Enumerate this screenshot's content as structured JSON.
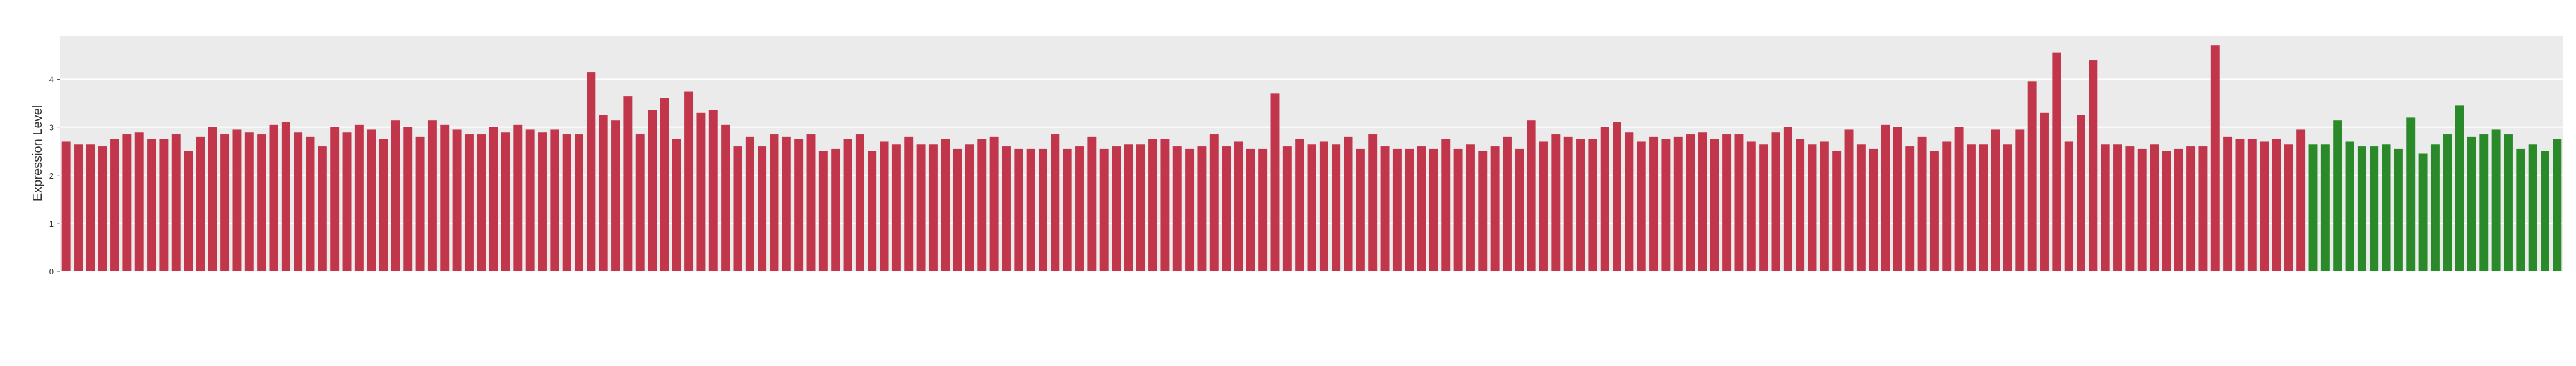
{
  "chart_data": {
    "type": "bar",
    "y_label": "Expression Level",
    "categories": [
      null,
      null,
      null,
      null,
      null,
      null,
      null,
      null,
      null,
      null,
      null,
      null,
      null,
      null,
      null,
      null,
      null,
      null,
      null,
      null,
      null,
      null,
      null,
      null,
      null,
      null,
      null,
      null,
      null,
      null,
      null,
      null,
      null,
      null,
      null,
      null,
      null,
      null,
      null,
      null,
      null,
      null,
      null,
      null,
      null,
      null,
      null,
      null,
      null,
      null,
      null,
      null,
      null,
      null,
      null,
      null,
      null,
      null,
      null,
      null,
      null,
      null,
      null,
      null,
      null,
      null,
      null,
      null,
      null,
      null,
      null,
      null,
      null,
      null,
      null,
      null,
      null,
      null,
      null,
      null,
      null,
      null,
      null,
      null,
      null,
      null,
      null,
      null,
      null,
      null,
      null,
      null,
      null,
      null,
      null,
      null,
      null,
      null,
      null,
      null,
      null,
      null,
      null,
      null,
      null,
      null,
      null,
      null,
      null,
      null,
      null,
      null,
      null,
      null,
      null,
      null,
      null,
      null,
      null,
      null,
      null,
      null,
      null,
      null,
      null,
      null,
      null,
      null,
      null,
      null,
      null,
      null,
      null,
      null,
      null,
      null,
      null,
      null,
      null,
      null,
      null,
      null,
      null,
      null,
      null,
      null,
      null,
      null,
      null,
      null,
      null,
      null,
      null,
      null,
      null,
      null,
      null,
      null,
      null,
      null,
      null,
      null,
      null,
      null,
      null,
      null,
      null,
      null,
      null,
      null,
      null,
      null,
      null,
      null,
      null,
      null,
      null,
      null,
      null,
      null,
      null,
      null,
      null,
      null,
      null,
      null,
      null,
      null,
      null,
      null,
      null,
      null,
      null,
      null,
      null,
      null,
      null,
      null,
      null,
      null,
      null,
      null,
      null,
      null,
      null
    ],
    "values": [
      2.7,
      2.65,
      2.65,
      2.6,
      2.75,
      2.85,
      2.9,
      2.75,
      2.75,
      2.85,
      2.5,
      2.8,
      3.0,
      2.85,
      2.95,
      2.9,
      2.85,
      3.05,
      3.1,
      2.9,
      2.8,
      2.6,
      3.0,
      2.9,
      3.05,
      2.95,
      2.75,
      3.15,
      3.0,
      2.8,
      3.15,
      3.05,
      2.95,
      2.85,
      2.85,
      3.0,
      2.9,
      3.05,
      2.95,
      2.9,
      2.95,
      2.85,
      2.85,
      4.15,
      3.25,
      3.15,
      3.65,
      2.85,
      3.35,
      3.6,
      2.75,
      3.75,
      3.3,
      3.35,
      3.05,
      2.6,
      2.8,
      2.6,
      2.85,
      2.8,
      2.75,
      2.85,
      2.5,
      2.55,
      2.75,
      2.85,
      2.5,
      2.7,
      2.65,
      2.8,
      2.65,
      2.65,
      2.75,
      2.55,
      2.65,
      2.75,
      2.8,
      2.6,
      2.55,
      2.55,
      2.55,
      2.85,
      2.55,
      2.6,
      2.8,
      2.55,
      2.6,
      2.65,
      2.65,
      2.75,
      2.75,
      2.6,
      2.55,
      2.6,
      2.85,
      2.6,
      2.7,
      2.55,
      2.55,
      3.7,
      2.6,
      2.75,
      2.65,
      2.7,
      2.65,
      2.8,
      2.55,
      2.85,
      2.6,
      2.55,
      2.55,
      2.6,
      2.55,
      2.75,
      2.55,
      2.65,
      2.5,
      2.6,
      2.8,
      2.55,
      3.15,
      2.7,
      2.85,
      2.8,
      2.75,
      2.75,
      3.0,
      3.1,
      2.9,
      2.7,
      2.8,
      2.75,
      2.8,
      2.85,
      2.9,
      2.75,
      2.85,
      2.85,
      2.7,
      2.65,
      2.9,
      3.0,
      2.75,
      2.65,
      2.7,
      2.5,
      2.95,
      2.65,
      2.55,
      3.05,
      3.0,
      2.6,
      2.8,
      2.5,
      2.7,
      3.0,
      2.65,
      2.65,
      2.95,
      2.65,
      2.95,
      3.95,
      3.3,
      4.55,
      2.7,
      3.25,
      4.4,
      2.65,
      2.65,
      2.6,
      2.55,
      2.65,
      2.5,
      2.55,
      2.6,
      2.6,
      4.7,
      2.8,
      2.75,
      2.75,
      2.7,
      2.75,
      2.65,
      2.95,
      2.65,
      2.65,
      3.15,
      2.7,
      2.6,
      2.6,
      2.65,
      2.55,
      3.2,
      2.45,
      2.65,
      2.85,
      3.45,
      2.8,
      2.85,
      2.95,
      2.85,
      2.55,
      2.65,
      2.5,
      2.75
    ],
    "colors": [
      "#c1364b",
      "#c1364b",
      "#c1364b",
      "#c1364b",
      "#c1364b",
      "#c1364b",
      "#c1364b",
      "#c1364b",
      "#c1364b",
      "#c1364b",
      "#c1364b",
      "#c1364b",
      "#c1364b",
      "#c1364b",
      "#c1364b",
      "#c1364b",
      "#c1364b",
      "#c1364b",
      "#c1364b",
      "#c1364b",
      "#c1364b",
      "#c1364b",
      "#c1364b",
      "#c1364b",
      "#c1364b",
      "#c1364b",
      "#c1364b",
      "#c1364b",
      "#c1364b",
      "#c1364b",
      "#c1364b",
      "#c1364b",
      "#c1364b",
      "#c1364b",
      "#c1364b",
      "#c1364b",
      "#c1364b",
      "#c1364b",
      "#c1364b",
      "#c1364b",
      "#c1364b",
      "#c1364b",
      "#c1364b",
      "#c1364b",
      "#c1364b",
      "#c1364b",
      "#c1364b",
      "#c1364b",
      "#c1364b",
      "#c1364b",
      "#c1364b",
      "#c1364b",
      "#c1364b",
      "#c1364b",
      "#c1364b",
      "#c1364b",
      "#c1364b",
      "#c1364b",
      "#c1364b",
      "#c1364b",
      "#c1364b",
      "#c1364b",
      "#c1364b",
      "#c1364b",
      "#c1364b",
      "#c1364b",
      "#c1364b",
      "#c1364b",
      "#c1364b",
      "#c1364b",
      "#c1364b",
      "#c1364b",
      "#c1364b",
      "#c1364b",
      "#c1364b",
      "#c1364b",
      "#c1364b",
      "#c1364b",
      "#c1364b",
      "#c1364b",
      "#c1364b",
      "#c1364b",
      "#c1364b",
      "#c1364b",
      "#c1364b",
      "#c1364b",
      "#c1364b",
      "#c1364b",
      "#c1364b",
      "#c1364b",
      "#c1364b",
      "#c1364b",
      "#c1364b",
      "#c1364b",
      "#c1364b",
      "#c1364b",
      "#c1364b",
      "#c1364b",
      "#c1364b",
      "#c1364b",
      "#c1364b",
      "#c1364b",
      "#c1364b",
      "#c1364b",
      "#c1364b",
      "#c1364b",
      "#c1364b",
      "#c1364b",
      "#c1364b",
      "#c1364b",
      "#c1364b",
      "#c1364b",
      "#c1364b",
      "#c1364b",
      "#c1364b",
      "#c1364b",
      "#c1364b",
      "#c1364b",
      "#c1364b",
      "#c1364b",
      "#c1364b",
      "#c1364b",
      "#c1364b",
      "#c1364b",
      "#c1364b",
      "#c1364b",
      "#c1364b",
      "#c1364b",
      "#c1364b",
      "#c1364b",
      "#c1364b",
      "#c1364b",
      "#c1364b",
      "#c1364b",
      "#c1364b",
      "#c1364b",
      "#c1364b",
      "#c1364b",
      "#c1364b",
      "#c1364b",
      "#c1364b",
      "#c1364b",
      "#c1364b",
      "#c1364b",
      "#c1364b",
      "#c1364b",
      "#c1364b",
      "#c1364b",
      "#c1364b",
      "#c1364b",
      "#c1364b",
      "#c1364b",
      "#c1364b",
      "#c1364b",
      "#c1364b",
      "#c1364b",
      "#c1364b",
      "#c1364b",
      "#c1364b",
      "#c1364b",
      "#c1364b",
      "#c1364b",
      "#c1364b",
      "#c1364b",
      "#c1364b",
      "#c1364b",
      "#c1364b",
      "#c1364b",
      "#c1364b",
      "#c1364b",
      "#c1364b",
      "#c1364b",
      "#c1364b",
      "#c1364b",
      "#c1364b",
      "#c1364b",
      "#c1364b",
      "#c1364b",
      "#c1364b",
      "#c1364b",
      "#c1364b",
      "#c1364b",
      "#c1364b",
      "#c1364b",
      "#2a8a2a",
      "#2a8a2a",
      "#2a8a2a",
      "#2a8a2a",
      "#2a8a2a",
      "#2a8a2a",
      "#2a8a2a",
      "#2a8a2a",
      "#2a8a2a",
      "#2a8a2a",
      "#2a8a2a",
      "#2a8a2a",
      "#2a8a2a",
      "#2a8a2a",
      "#2a8a2a",
      "#2a8a2a",
      "#2a8a2a",
      "#2a8a2a",
      "#2a8a2a",
      "#2a8a2a",
      "#2a8a2a"
    ],
    "ylim": [
      0,
      4.9
    ],
    "yticks": [
      0,
      1,
      2,
      3,
      4
    ],
    "grid": true
  }
}
